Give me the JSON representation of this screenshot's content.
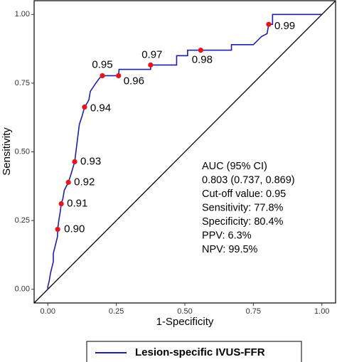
{
  "chart_data": {
    "type": "line",
    "x_label": "1-Specificity",
    "y_label": "Sensitivity",
    "xlim": [
      -0.05,
      1.05
    ],
    "ylim": [
      -0.05,
      1.05
    ],
    "xticks": [
      {
        "value": 0,
        "label": "0.00"
      },
      {
        "value": 0.25,
        "label": "0.25"
      },
      {
        "value": 0.5,
        "label": "0.50"
      },
      {
        "value": 0.75,
        "label": "0.75"
      },
      {
        "value": 1,
        "label": "1.00"
      }
    ],
    "yticks": [
      {
        "value": 0,
        "label": "0.00"
      },
      {
        "value": 0.25,
        "label": "0.25"
      },
      {
        "value": 0.5,
        "label": "0.50"
      },
      {
        "value": 0.75,
        "label": "0.75"
      },
      {
        "value": 1,
        "label": "1.00"
      }
    ],
    "series": [
      {
        "name": "Lesion-specific IVUS-FFR",
        "color": "#1f1fa8",
        "x": [
          0,
          0,
          0.005,
          0.01,
          0.015,
          0.02,
          0.02,
          0.025,
          0.03,
          0.035,
          0.036,
          0.04,
          0.045,
          0.049,
          0.055,
          0.06,
          0.075,
          0.085,
          0.098,
          0.105,
          0.11,
          0.115,
          0.125,
          0.134,
          0.145,
          0.15,
          0.155,
          0.175,
          0.19,
          0.199,
          0.258,
          0.26,
          0.375,
          0.375,
          0.47,
          0.47,
          0.51,
          0.51,
          0.67,
          0.67,
          0.75,
          0.78,
          0.8,
          0.806,
          0.82,
          0.82,
          1
        ],
        "values": [
          0,
          0.01,
          0.03,
          0.06,
          0.08,
          0.1,
          0.13,
          0.15,
          0.17,
          0.19,
          0.218,
          0.25,
          0.28,
          0.311,
          0.33,
          0.36,
          0.389,
          0.42,
          0.464,
          0.52,
          0.56,
          0.6,
          0.63,
          0.663,
          0.68,
          0.69,
          0.72,
          0.75,
          0.77,
          0.777,
          0.777,
          0.8,
          0.8,
          0.816,
          0.816,
          0.85,
          0.85,
          0.87,
          0.87,
          0.89,
          0.89,
          0.92,
          0.93,
          0.964,
          0.964,
          1,
          1
        ]
      }
    ],
    "points": {
      "color": "#e8141c",
      "x": [
        0.036,
        0.049,
        0.075,
        0.098,
        0.134,
        0.199,
        0.258,
        0.375,
        0.558,
        0.806
      ],
      "values": [
        0.218,
        0.311,
        0.389,
        0.464,
        0.663,
        0.777,
        0.777,
        0.816,
        0.87,
        0.964
      ],
      "labels": [
        "0.90",
        "0.91",
        "0.92",
        "0.93",
        "0.94",
        "0.95",
        "0.96",
        "0.97",
        "0.98",
        "0.99"
      ]
    },
    "reference_line": true,
    "annotation": [
      "AUC (95% CI)",
      "0.803 (0.737, 0.869)",
      "Cut-off value: 0.95",
      "Sensitivity: 77.8%",
      "Specificity: 80.4%",
      "PPV: 6.3%",
      "NPV: 99.5%"
    ]
  }
}
